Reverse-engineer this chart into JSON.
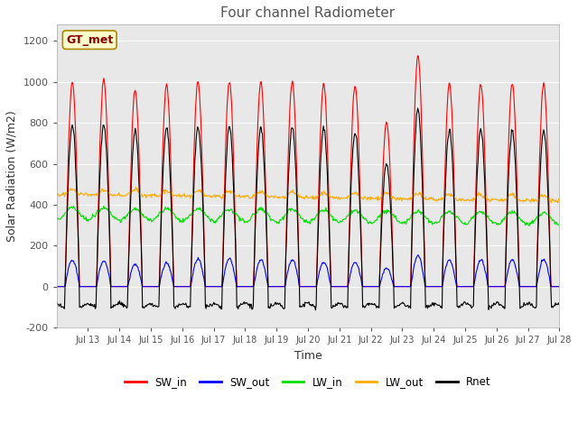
{
  "title": "Four channel Radiometer",
  "xlabel": "Time",
  "ylabel": "Solar Radiation (W/m2)",
  "ylim": [
    -200,
    1280
  ],
  "yticks": [
    -200,
    0,
    200,
    400,
    600,
    800,
    1000,
    1200
  ],
  "xlim": [
    12,
    28
  ],
  "x_tick_labels": [
    "Jul 13",
    "Jul 14",
    "Jul 15",
    "Jul 16",
    "Jul 17",
    "Jul 18",
    "Jul 19",
    "Jul 20",
    "Jul 21",
    "Jul 22",
    "Jul 23",
    "Jul 24",
    "Jul 25",
    "Jul 26",
    "Jul 27",
    "Jul 28"
  ],
  "colors": {
    "SW_in": "#ff0000",
    "SW_out": "#0000ff",
    "LW_in": "#00dd00",
    "LW_out": "#ffaa00",
    "Rnet": "#000000"
  },
  "fig_bg_color": "#ffffff",
  "plot_bg_color": "#e8e8e8",
  "grid_color": "#ffffff",
  "annotation_text": "GT_met",
  "annotation_box_facecolor": "#ffffcc",
  "annotation_box_edgecolor": "#aa8800",
  "annotation_text_color": "#880000",
  "legend_entries": [
    "SW_in",
    "SW_out",
    "LW_in",
    "LW_out",
    "Rnet"
  ],
  "peak_values": [
    1000,
    1010,
    960,
    990,
    1000,
    1000,
    1000,
    1000,
    990,
    980,
    800,
    1130,
    990,
    990,
    990,
    990
  ],
  "sw_out_peaks": [
    130,
    125,
    110,
    115,
    135,
    135,
    130,
    130,
    120,
    120,
    90,
    150,
    130,
    130,
    130,
    130
  ],
  "rnet_peaks": [
    790,
    790,
    760,
    775,
    780,
    780,
    780,
    780,
    770,
    760,
    600,
    870,
    765,
    765,
    760,
    760
  ],
  "lw_in_base": 355,
  "lw_in_trend": 1.5,
  "lw_out_base": 450,
  "lw_out_trend": 2.0,
  "days": 16,
  "points_per_day": 48
}
